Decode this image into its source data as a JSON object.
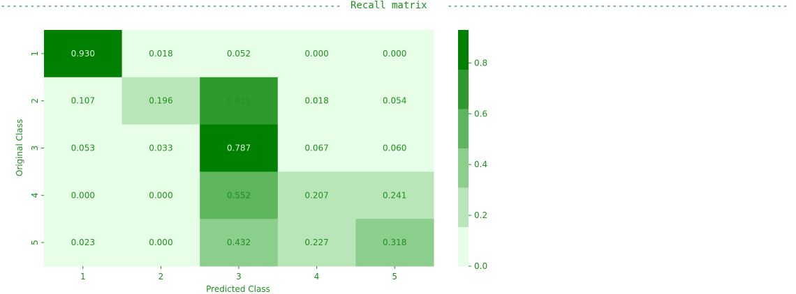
{
  "header": {
    "title": "Recall matrix",
    "dashes_left": "--------------------------------------------------------------------",
    "dashes_right": "--------------------------------------------------------------------"
  },
  "chart_data": {
    "type": "heatmap",
    "title": "Recall matrix",
    "xlabel": "Predicted Class",
    "ylabel": "Original Class",
    "x_categories": [
      "1",
      "2",
      "3",
      "4",
      "5"
    ],
    "y_categories": [
      "1",
      "2",
      "3",
      "4",
      "5"
    ],
    "values": [
      [
        0.93,
        0.018,
        0.052,
        0.0,
        0.0
      ],
      [
        0.107,
        0.196,
        0.625,
        0.018,
        0.054
      ],
      [
        0.053,
        0.033,
        0.787,
        0.067,
        0.06
      ],
      [
        0.0,
        0.0,
        0.552,
        0.207,
        0.241
      ],
      [
        0.023,
        0.0,
        0.432,
        0.227,
        0.318
      ]
    ],
    "labels": [
      [
        "0.930",
        "0.018",
        "0.052",
        "0.000",
        "0.000"
      ],
      [
        "0.107",
        "0.196",
        "0.625",
        "0.018",
        "0.054"
      ],
      [
        "0.053",
        "0.033",
        "0.787",
        "0.067",
        "0.060"
      ],
      [
        "0.000",
        "0.000",
        "0.552",
        "0.207",
        "0.241"
      ],
      [
        "0.023",
        "0.000",
        "0.432",
        "0.227",
        "0.318"
      ]
    ],
    "colorbar": {
      "range": [
        0.0,
        0.93
      ],
      "ticks": [
        0.0,
        0.2,
        0.4,
        0.6,
        0.8
      ],
      "tick_labels": [
        "0.0",
        "0.2",
        "0.4",
        "0.6",
        "0.8"
      ],
      "colors": [
        "#e6ffe6",
        "#b9e6b9",
        "#8cce8c",
        "#5db65d",
        "#2e9a2e",
        "#008000"
      ]
    },
    "text_color": "#1f8f1f",
    "grid": false
  }
}
